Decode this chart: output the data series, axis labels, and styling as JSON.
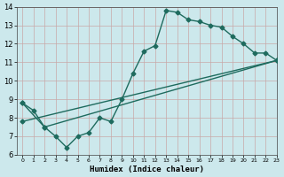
{
  "line1_x": [
    0,
    1,
    2,
    3,
    4,
    5,
    6,
    7,
    8,
    9,
    10,
    11,
    12,
    13,
    14,
    15,
    16,
    17,
    18,
    19,
    20,
    21,
    22,
    23
  ],
  "line1_y": [
    8.8,
    8.4,
    7.5,
    7.0,
    6.4,
    7.0,
    7.2,
    8.0,
    7.8,
    9.0,
    10.4,
    11.6,
    11.9,
    13.8,
    13.7,
    13.3,
    13.2,
    13.0,
    12.9,
    12.4,
    12.0,
    11.5,
    11.5,
    11.1
  ],
  "line2_x": [
    0,
    2,
    23
  ],
  "line2_y": [
    8.8,
    7.5,
    11.1
  ],
  "line3_x": [
    0,
    23
  ],
  "line3_y": [
    7.8,
    11.1
  ],
  "line_color": "#1e6b5e",
  "bg_color": "#cce8ec",
  "grid_color": "#c8a8a8",
  "xlabel": "Humidex (Indice chaleur)",
  "xlim": [
    -0.5,
    23
  ],
  "ylim": [
    6,
    14
  ],
  "yticks": [
    6,
    7,
    8,
    9,
    10,
    11,
    12,
    13,
    14
  ],
  "xticks": [
    0,
    1,
    2,
    3,
    4,
    5,
    6,
    7,
    8,
    9,
    10,
    11,
    12,
    13,
    14,
    15,
    16,
    17,
    18,
    19,
    20,
    21,
    22,
    23
  ],
  "marker": "D",
  "markersize": 2.5,
  "linewidth": 1.0
}
